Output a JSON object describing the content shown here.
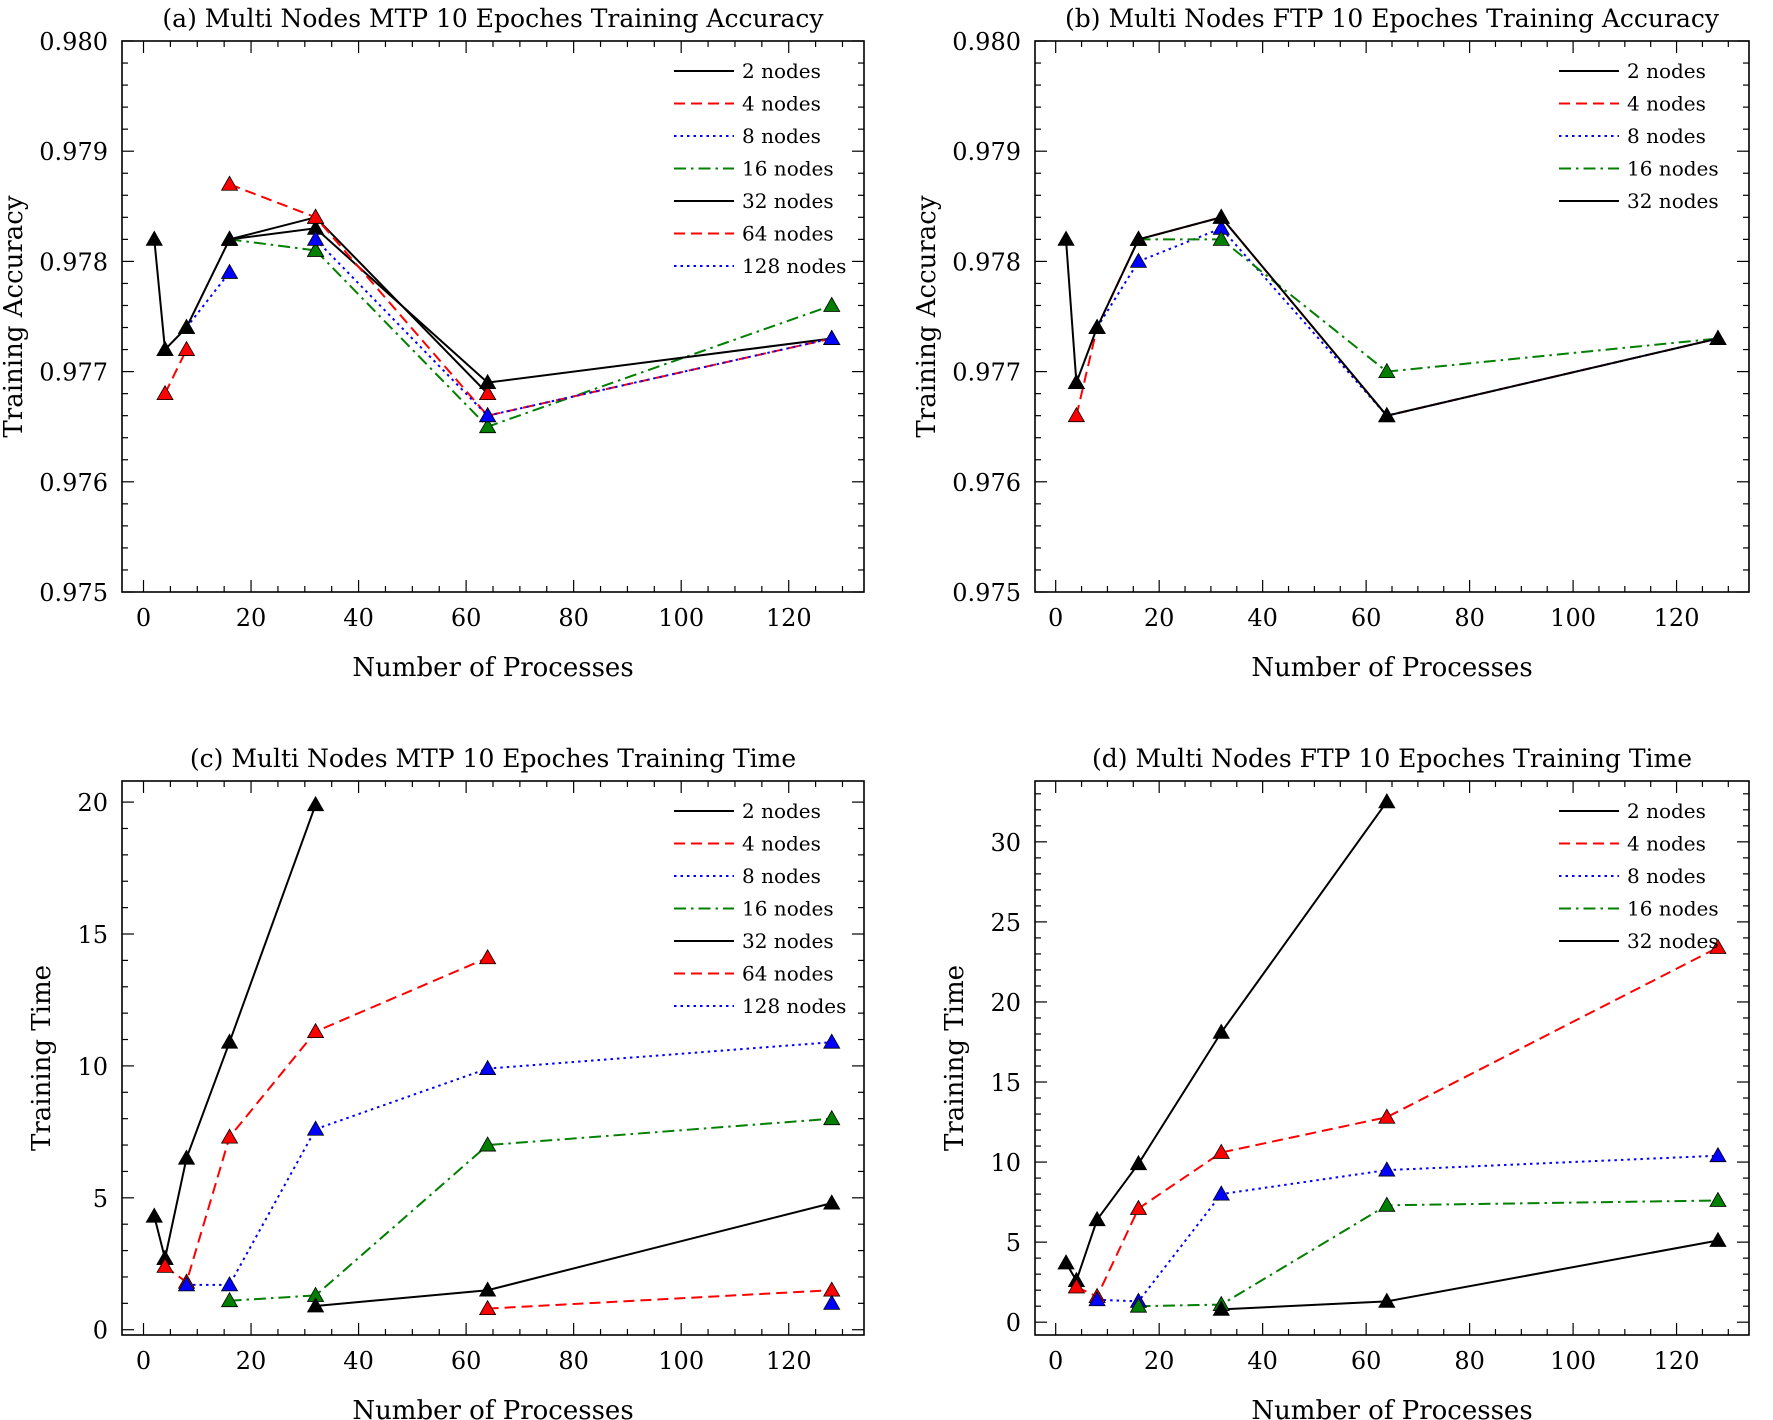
{
  "chart_data": [
    {
      "type": "line",
      "title": "(a) Multi Nodes MTP 10 Epoches Training Accuracy",
      "xlabel": "Number of Processes",
      "ylabel": "Training Accuracy",
      "xlim": [
        -4,
        134
      ],
      "ylim": [
        0.975,
        0.98
      ],
      "xticks": [
        0,
        20,
        40,
        60,
        80,
        100,
        120
      ],
      "yticks": [
        0.975,
        0.976,
        0.977,
        0.978,
        0.979,
        0.98
      ],
      "ytick_labels": [
        "0.975",
        "0.976",
        "0.977",
        "0.978",
        "0.979",
        "0.980"
      ],
      "legend": "top-right",
      "series": [
        {
          "name": "2 nodes",
          "color": "#000000",
          "dash": "solid",
          "x": [
            2,
            4
          ],
          "y": [
            0.9782,
            0.9772
          ]
        },
        {
          "name": "4 nodes",
          "color": "#ff0000",
          "dash": "dashed",
          "x": [
            4,
            8
          ],
          "y": [
            0.9768,
            0.9772
          ]
        },
        {
          "name": "8 nodes",
          "color": "#0000ff",
          "dash": "dotted",
          "x": [
            8,
            16
          ],
          "y": [
            0.9774,
            0.9779
          ]
        },
        {
          "name": "16 nodes",
          "color": "#007f00",
          "dash": "dashdot",
          "x": [
            16,
            32
          ],
          "y": [
            0.9782,
            0.9781
          ]
        },
        {
          "name": "32 nodes",
          "color": "#000000",
          "dash": "solid",
          "x": [
            4,
            8,
            16,
            32,
            64,
            128
          ],
          "y": [
            0.9772,
            0.9774,
            0.9782,
            0.9783,
            0.9769,
            0.9773
          ]
        },
        {
          "name": "64 nodes",
          "color": "#ff0000",
          "dash": "dashed",
          "x": [
            16,
            32,
            64,
            128
          ],
          "y": [
            0.9787,
            0.9784,
            0.9766,
            0.9773
          ]
        },
        {
          "name": "128 nodes",
          "color": "#0000ff",
          "dash": "dotted",
          "x": [
            32,
            64,
            128
          ],
          "y": [
            0.9782,
            0.9766,
            0.9773
          ]
        }
      ],
      "extra_lines": [
        {
          "color": "#007f00",
          "dash": "dashdot",
          "x": [
            32,
            64,
            128
          ],
          "y": [
            0.9781,
            0.9765,
            0.9776
          ]
        },
        {
          "color": "#000000",
          "dash": "solid",
          "x": [
            16,
            32,
            64
          ],
          "y": [
            0.9782,
            0.9784,
            0.9768
          ]
        },
        {
          "color": "#ff0000",
          "dash": "dashed",
          "x": [
            64
          ],
          "y": [
            0.9768
          ]
        }
      ]
    },
    {
      "type": "line",
      "title": "(b) Multi Nodes FTP 10 Epoches Training Accuracy",
      "xlabel": "Number of Processes",
      "ylabel": "Training Accuracy",
      "xlim": [
        -4,
        134
      ],
      "ylim": [
        0.975,
        0.98
      ],
      "xticks": [
        0,
        20,
        40,
        60,
        80,
        100,
        120
      ],
      "yticks": [
        0.975,
        0.976,
        0.977,
        0.978,
        0.979,
        0.98
      ],
      "ytick_labels": [
        "0.975",
        "0.976",
        "0.977",
        "0.978",
        "0.979",
        "0.980"
      ],
      "legend": "top-right",
      "series": [
        {
          "name": "2 nodes",
          "color": "#000000",
          "dash": "solid",
          "x": [
            2,
            4
          ],
          "y": [
            0.9782,
            0.9769
          ]
        },
        {
          "name": "4 nodes",
          "color": "#ff0000",
          "dash": "dashed",
          "x": [
            4,
            8,
            16,
            32,
            64,
            128
          ],
          "y": [
            0.9766,
            0.9774,
            0.9782,
            0.9784,
            0.9766,
            0.9773
          ]
        },
        {
          "name": "8 nodes",
          "color": "#0000ff",
          "dash": "dotted",
          "x": [
            8,
            16,
            32,
            64,
            128
          ],
          "y": [
            0.9774,
            0.978,
            0.9783,
            0.9766,
            0.9773
          ]
        },
        {
          "name": "16 nodes",
          "color": "#007f00",
          "dash": "dashdot",
          "x": [
            16,
            32,
            64,
            128
          ],
          "y": [
            0.9782,
            0.9782,
            0.977,
            0.9773
          ]
        },
        {
          "name": "32 nodes",
          "color": "#000000",
          "dash": "solid",
          "x": [
            4,
            8,
            16,
            32,
            64,
            128
          ],
          "y": [
            0.9769,
            0.9774,
            0.9782,
            0.9784,
            0.9766,
            0.9773
          ]
        }
      ],
      "extra_lines": []
    },
    {
      "type": "line",
      "title": "(c) Multi Nodes MTP 10 Epoches Training Time",
      "xlabel": "Number of Processes",
      "ylabel": "Training Time",
      "xlim": [
        -4,
        134
      ],
      "ylim": [
        -0.2,
        20.8
      ],
      "xticks": [
        0,
        20,
        40,
        60,
        80,
        100,
        120
      ],
      "yticks": [
        0,
        5,
        10,
        15,
        20
      ],
      "ytick_labels": [
        "0",
        "5",
        "10",
        "15",
        "20"
      ],
      "legend": "top-right",
      "series": [
        {
          "name": "2 nodes",
          "color": "#000000",
          "dash": "solid",
          "x": [
            2,
            4
          ],
          "y": [
            4.3,
            2.7
          ]
        },
        {
          "name": "4 nodes",
          "color": "#ff0000",
          "dash": "dashed",
          "x": [
            4,
            8,
            16,
            32,
            64
          ],
          "y": [
            2.4,
            1.8,
            7.3,
            11.3,
            14.1
          ]
        },
        {
          "name": "8 nodes",
          "color": "#0000ff",
          "dash": "dotted",
          "x": [
            8,
            16,
            32,
            64,
            128
          ],
          "y": [
            1.7,
            1.7,
            7.6,
            9.9,
            10.9
          ]
        },
        {
          "name": "16 nodes",
          "color": "#007f00",
          "dash": "dashdot",
          "x": [
            16,
            32,
            64,
            128
          ],
          "y": [
            1.1,
            1.3,
            7.0,
            8.0
          ]
        },
        {
          "name": "32 nodes",
          "color": "#000000",
          "dash": "solid",
          "x": [
            32,
            64,
            128
          ],
          "y": [
            0.9,
            1.5,
            4.8
          ]
        },
        {
          "name": "64 nodes",
          "color": "#ff0000",
          "dash": "dashed",
          "x": [
            64,
            128
          ],
          "y": [
            0.8,
            1.5
          ]
        },
        {
          "name": "128 nodes",
          "color": "#0000ff",
          "dash": "dotted",
          "x": [
            128
          ],
          "y": [
            1.0
          ]
        }
      ],
      "extra_lines": [
        {
          "color": "#000000",
          "dash": "solid",
          "x": [
            4,
            8,
            16,
            32
          ],
          "y": [
            2.7,
            6.5,
            10.9,
            19.9
          ]
        }
      ]
    },
    {
      "type": "line",
      "title": "(d) Multi Nodes FTP 10 Epoches Training Time",
      "xlabel": "Number of Processes",
      "ylabel": "Training Time",
      "xlim": [
        -4,
        134
      ],
      "ylim": [
        -0.8,
        33.8
      ],
      "xticks": [
        0,
        20,
        40,
        60,
        80,
        100,
        120
      ],
      "yticks": [
        0,
        5,
        10,
        15,
        20,
        25,
        30
      ],
      "ytick_labels": [
        "0",
        "5",
        "10",
        "15",
        "20",
        "25",
        "30"
      ],
      "legend": "top-right",
      "series": [
        {
          "name": "2 nodes",
          "color": "#000000",
          "dash": "solid",
          "x": [
            2,
            4,
            8,
            16,
            32,
            64
          ],
          "y": [
            3.7,
            2.6,
            6.4,
            9.9,
            18.1,
            32.5
          ]
        },
        {
          "name": "4 nodes",
          "color": "#ff0000",
          "dash": "dashed",
          "x": [
            4,
            8,
            16,
            32,
            64,
            128
          ],
          "y": [
            2.2,
            1.6,
            7.1,
            10.6,
            12.8,
            23.4
          ]
        },
        {
          "name": "8 nodes",
          "color": "#0000ff",
          "dash": "dotted",
          "x": [
            8,
            16,
            32,
            64,
            128
          ],
          "y": [
            1.4,
            1.3,
            8.0,
            9.5,
            10.4
          ]
        },
        {
          "name": "16 nodes",
          "color": "#007f00",
          "dash": "dashdot",
          "x": [
            16,
            32,
            64,
            128
          ],
          "y": [
            1.0,
            1.1,
            7.3,
            7.6
          ]
        },
        {
          "name": "32 nodes",
          "color": "#000000",
          "dash": "solid",
          "x": [
            32,
            64,
            128
          ],
          "y": [
            0.8,
            1.3,
            5.1
          ]
        }
      ],
      "extra_lines": []
    }
  ]
}
